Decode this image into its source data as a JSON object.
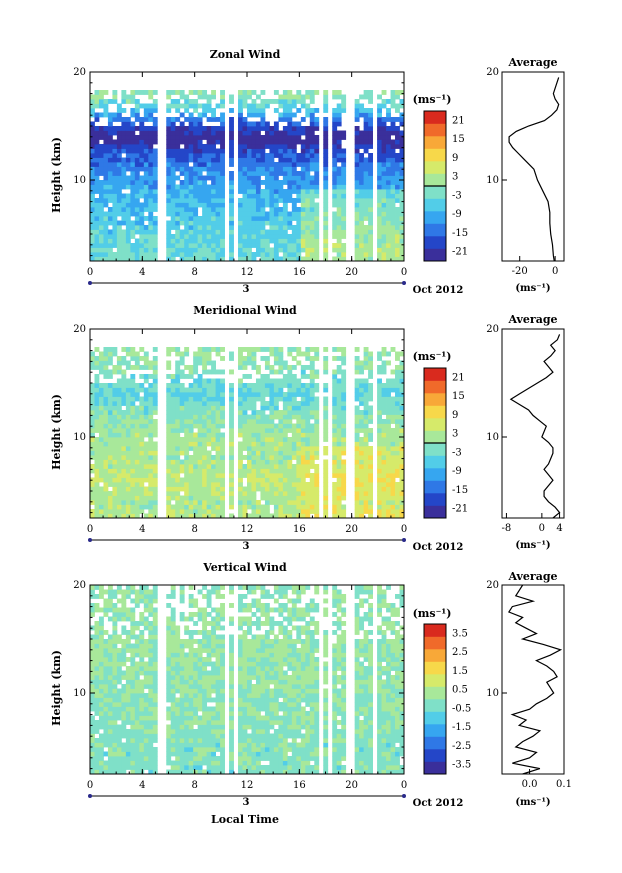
{
  "figure": {
    "x_label": "Local Time",
    "date_label": "Oct 2012",
    "day_label": "3",
    "units_label": "(ms⁻¹)"
  },
  "chart_data": [
    {
      "type": "heatmap",
      "title": "Zonal Wind",
      "ylabel": "Height (km)",
      "xlabel": "Local Time",
      "x_ticks": [
        "0",
        "4",
        "8",
        "12",
        "16",
        "20",
        "0"
      ],
      "xlim": [
        0,
        24
      ],
      "y_ticks": [
        "20",
        "10"
      ],
      "ylim": [
        2.5,
        20
      ],
      "colorbar": {
        "label": "(ms⁻¹)",
        "ticks": [
          "21",
          "15",
          "9",
          "3",
          "-3",
          "-9",
          "-15",
          "-21"
        ],
        "range": [
          -24,
          24
        ],
        "zero_line": 0
      },
      "field": {
        "mean_profile_heights": [
          2.5,
          4,
          6,
          8,
          10,
          11.5,
          12.5,
          14,
          15.5,
          16.5,
          18,
          19
        ],
        "mean_profile_values": [
          -3,
          -4,
          -6,
          -8,
          -11,
          -14,
          -17,
          -24,
          -15,
          -6,
          0,
          -2
        ],
        "gap_times": [
          5.2,
          5.7,
          10.6,
          11.1,
          17.5,
          18.2,
          19.6,
          20.1,
          21.8
        ],
        "data_top_km": 18.5
      },
      "average_panel": {
        "title": "Average",
        "x_ticks": [
          "-20",
          "0"
        ],
        "xlim": [
          -30,
          5
        ],
        "y_ticks": [
          "20",
          "10"
        ],
        "units": "(ms⁻¹)",
        "heights": [
          2.5,
          3,
          4,
          5,
          6,
          7,
          8,
          9,
          10,
          10.5,
          11,
          11.5,
          12,
          12.5,
          13,
          13.5,
          14,
          14.5,
          15,
          15.5,
          16,
          16.5,
          17,
          17.5,
          18,
          18.5,
          19,
          19.5
        ],
        "values": [
          -0.5,
          -1,
          -1.5,
          -2.5,
          -3,
          -3,
          -4,
          -7,
          -10,
          -11,
          -12,
          -15,
          -18,
          -21,
          -24,
          -26,
          -26,
          -22,
          -15,
          -6,
          -2,
          1,
          2,
          0,
          -1,
          0,
          1,
          2
        ]
      }
    },
    {
      "type": "heatmap",
      "title": "Meridional Wind",
      "ylabel": "Height (km)",
      "xlabel": "Local Time",
      "x_ticks": [
        "0",
        "4",
        "8",
        "12",
        "16",
        "20",
        "0"
      ],
      "xlim": [
        0,
        24
      ],
      "y_ticks": [
        "20",
        "10"
      ],
      "ylim": [
        2.5,
        20
      ],
      "colorbar": {
        "label": "(ms⁻¹)",
        "ticks": [
          "21",
          "15",
          "9",
          "3",
          "-3",
          "-9",
          "-15",
          "-21"
        ],
        "range": [
          -24,
          24
        ],
        "zero_line": 0
      },
      "field": {
        "mean_profile_heights": [
          2.5,
          4,
          6,
          8,
          10,
          11.5,
          12.5,
          14,
          15.5,
          16.5,
          18,
          19
        ],
        "mean_profile_values": [
          3,
          2,
          4,
          2,
          2,
          0,
          -2,
          -4,
          -2,
          -1,
          1,
          0
        ],
        "gap_times": [
          5.2,
          5.7,
          10.6,
          11.1,
          17.5,
          18.2,
          19.6,
          20.1,
          21.8
        ],
        "data_top_km": 18.5
      },
      "average_panel": {
        "title": "Average",
        "x_ticks": [
          "-8",
          "0",
          "4"
        ],
        "xlim": [
          -9,
          5
        ],
        "y_ticks": [
          "20",
          "10"
        ],
        "units": "(ms⁻¹)",
        "heights": [
          2.5,
          3,
          3.5,
          4,
          4.5,
          5,
          5.5,
          6,
          6.5,
          7,
          7.5,
          8,
          8.5,
          9,
          9.5,
          10,
          10.5,
          11,
          11.5,
          12,
          12.5,
          13,
          13.5,
          14,
          14.5,
          15,
          15.5,
          16,
          16.5,
          17,
          17.5,
          18,
          18.5,
          19,
          19.5
        ],
        "values": [
          2.5,
          4,
          3,
          1.5,
          0.5,
          0.5,
          1.5,
          2.5,
          1.5,
          0.5,
          1.5,
          2,
          2.5,
          2.5,
          1.5,
          0,
          0.5,
          1,
          -0.5,
          -2,
          -3,
          -5,
          -7,
          -5,
          -3,
          -1,
          1,
          2.5,
          1.5,
          0.5,
          2,
          3,
          2,
          3.5,
          4
        ]
      }
    },
    {
      "type": "heatmap",
      "title": "Vertical Wind",
      "ylabel": "Height (km)",
      "xlabel": "Local Time",
      "x_ticks": [
        "0",
        "4",
        "8",
        "12",
        "16",
        "20",
        "0"
      ],
      "xlim": [
        0,
        24
      ],
      "y_ticks": [
        "20",
        "10"
      ],
      "ylim": [
        2.5,
        20
      ],
      "colorbar": {
        "label": "(ms⁻¹)",
        "ticks": [
          "3.5",
          "2.5",
          "1.5",
          "0.5",
          "-0.5",
          "-1.5",
          "-2.5",
          "-3.5"
        ],
        "range": [
          -4,
          4
        ],
        "zero_line": null
      },
      "field": {
        "mean_profile_heights": [
          2.5,
          6,
          10,
          14,
          18,
          20
        ],
        "mean_profile_values": [
          -0.3,
          -0.2,
          0,
          0.1,
          0,
          0
        ],
        "gap_times": [
          5.2,
          5.7,
          10.6,
          11.1,
          17.5,
          18.2,
          19.6,
          20.1,
          21.8
        ],
        "data_top_km": 20
      },
      "average_panel": {
        "title": "Average",
        "x_ticks": [
          "0.0",
          "0.1"
        ],
        "xlim": [
          -0.08,
          0.1
        ],
        "y_ticks": [
          "20",
          "10"
        ],
        "units": "(ms⁻¹)",
        "heights": [
          2.5,
          3,
          3.5,
          4,
          4.5,
          5,
          5.5,
          6,
          6.5,
          7,
          7.5,
          8,
          8.5,
          9,
          9.5,
          10,
          10.5,
          11,
          11.5,
          12,
          12.5,
          13,
          13.5,
          14,
          14.5,
          15,
          15.5,
          16,
          16.5,
          17,
          17.5,
          18,
          18.5,
          19,
          19.5,
          20
        ],
        "values": [
          -0.02,
          0.03,
          -0.05,
          0.0,
          0.02,
          -0.04,
          -0.02,
          0.01,
          0.03,
          -0.03,
          -0.01,
          -0.05,
          0.0,
          0.02,
          0.05,
          0.07,
          0.06,
          0.05,
          0.08,
          0.07,
          0.05,
          0.02,
          0.06,
          0.09,
          0.04,
          -0.02,
          0.02,
          -0.01,
          -0.04,
          -0.02,
          -0.06,
          -0.05,
          0.01,
          -0.04,
          -0.03,
          -0.02
        ]
      }
    }
  ]
}
